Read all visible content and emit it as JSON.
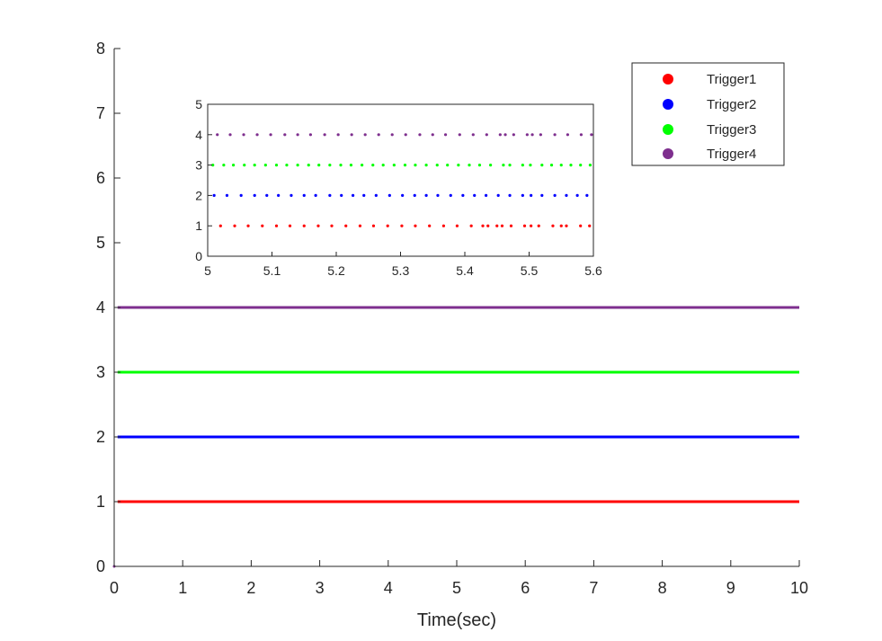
{
  "chart_data": [
    {
      "id": "main",
      "type": "scatter",
      "title": "",
      "xlabel": "Time(sec)",
      "ylabel": "",
      "xlim": [
        0,
        10
      ],
      "ylim": [
        0,
        8
      ],
      "xticks": [
        0,
        1,
        2,
        3,
        4,
        5,
        6,
        7,
        8,
        9,
        10
      ],
      "yticks": [
        0,
        1,
        2,
        3,
        4,
        5,
        6,
        7,
        8
      ],
      "grid": false,
      "legend_position": "top-right",
      "series": [
        {
          "name": "Trigger1",
          "color": "#ff0000",
          "y": 1,
          "x_range": [
            0.05,
            10
          ]
        },
        {
          "name": "Trigger2",
          "color": "#0000ff",
          "y": 2,
          "x_range": [
            0.05,
            10
          ]
        },
        {
          "name": "Trigger3",
          "color": "#00ff00",
          "y": 3,
          "x_range": [
            0.05,
            10
          ]
        },
        {
          "name": "Trigger4",
          "color": "#7e2f8e",
          "y": 4,
          "x_range": [
            0.05,
            10
          ]
        }
      ]
    },
    {
      "id": "inset",
      "type": "scatter",
      "title": "",
      "xlabel": "",
      "ylabel": "",
      "xlim": [
        5,
        5.6
      ],
      "ylim": [
        0,
        5
      ],
      "xticks": [
        "5",
        "5.1",
        "5.2",
        "5.3",
        "5.4",
        "5.5",
        "5.6"
      ],
      "yticks": [
        0,
        1,
        2,
        3,
        4,
        5
      ],
      "grid": false,
      "series": [
        {
          "name": "Trigger1",
          "color": "#ff0000",
          "y": 1,
          "x": [
            5.02,
            5.042,
            5.063,
            5.085,
            5.107,
            5.128,
            5.15,
            5.172,
            5.193,
            5.215,
            5.237,
            5.258,
            5.28,
            5.302,
            5.323,
            5.345,
            5.367,
            5.388,
            5.41,
            5.428,
            5.436,
            5.45,
            5.458,
            5.472,
            5.493,
            5.503,
            5.515,
            5.537,
            5.55,
            5.558,
            5.58,
            5.594
          ]
        },
        {
          "name": "Trigger2",
          "color": "#0000ff",
          "y": 2,
          "x": [
            5.01,
            5.03,
            5.052,
            5.073,
            5.092,
            5.11,
            5.13,
            5.15,
            5.168,
            5.19,
            5.208,
            5.226,
            5.243,
            5.262,
            5.283,
            5.303,
            5.322,
            5.34,
            5.358,
            5.378,
            5.397,
            5.415,
            5.433,
            5.452,
            5.47,
            5.49,
            5.503,
            5.52,
            5.54,
            5.558,
            5.575,
            5.59
          ]
        },
        {
          "name": "Trigger3",
          "color": "#00ff00",
          "y": 3,
          "x": [
            5.008,
            5.025,
            5.04,
            5.057,
            5.073,
            5.09,
            5.107,
            5.123,
            5.14,
            5.157,
            5.173,
            5.19,
            5.207,
            5.223,
            5.24,
            5.257,
            5.273,
            5.29,
            5.307,
            5.323,
            5.34,
            5.357,
            5.373,
            5.39,
            5.407,
            5.423,
            5.44,
            5.46,
            5.47,
            5.49,
            5.502,
            5.52,
            5.535,
            5.55,
            5.565,
            5.58,
            5.595
          ]
        },
        {
          "name": "Trigger4",
          "color": "#7e2f8e",
          "y": 4,
          "x": [
            5.015,
            5.035,
            5.056,
            5.077,
            5.098,
            5.12,
            5.14,
            5.16,
            5.182,
            5.203,
            5.224,
            5.245,
            5.266,
            5.287,
            5.308,
            5.33,
            5.35,
            5.37,
            5.392,
            5.413,
            5.434,
            5.455,
            5.463,
            5.476,
            5.497,
            5.505,
            5.518,
            5.54,
            5.56,
            5.581,
            5.597
          ]
        }
      ]
    }
  ]
}
